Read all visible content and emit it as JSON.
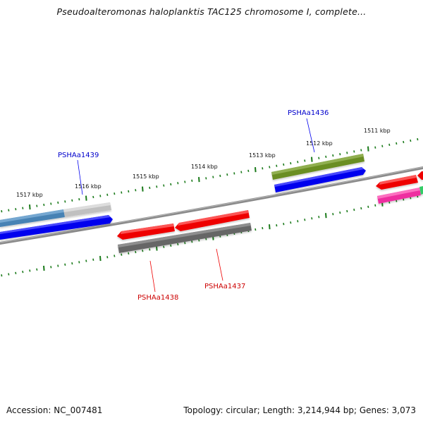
{
  "title": "Pseudoalteromonas haloplanktis TAC125 chromosome I, complete...",
  "footer": {
    "accession": "Accession: NC_007481",
    "summary": "Topology: circular; Length: 3,214,944 bp; Genes: 3,073"
  },
  "ticks": [
    {
      "label": "1511 kbp"
    },
    {
      "label": "1512 kbp"
    },
    {
      "label": "1513 kbp"
    },
    {
      "label": "1514 kbp"
    },
    {
      "label": "1515 kbp"
    },
    {
      "label": "1516 kbp"
    },
    {
      "label": "1517 kbp"
    }
  ],
  "genes": [
    {
      "name": "PSHAa1436",
      "strand": "forward",
      "color": "#0000ee"
    },
    {
      "name": "PSHAa1437",
      "strand": "reverse",
      "color": "#ee0000"
    },
    {
      "name": "PSHAa1438",
      "strand": "reverse",
      "color": "#ee0000"
    },
    {
      "name": "PSHAa1439",
      "strand": "forward",
      "color": "#0000ee"
    }
  ],
  "colors": {
    "backbone": "#8a8a8a",
    "tick": "#1a7a1a",
    "forward_cds": "#0000ee",
    "reverse_cds": "#ee0000",
    "olive_feature": "#6b8e23",
    "steelblue_feature": "#4682b4",
    "lightgray_feature": "#c0c0c0",
    "darkgray_feature": "#666666",
    "pink_feature": "#ee2fa0",
    "green_feature": "#33cc66"
  }
}
